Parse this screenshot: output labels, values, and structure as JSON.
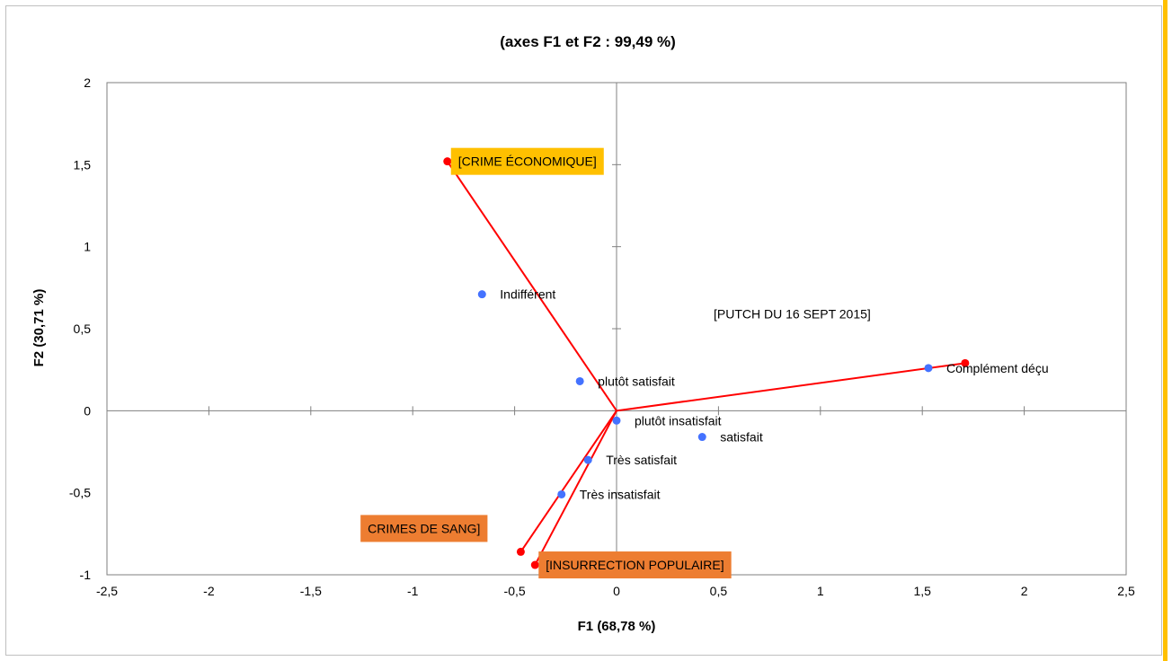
{
  "chart_data": {
    "type": "scatter",
    "title": "(axes F1 et F2 : 99,49 %)",
    "xlabel": "F1 (68,78 %)",
    "ylabel": "F2 (30,71 %)",
    "xlim": [
      -2.5,
      2.5
    ],
    "ylim": [
      -1,
      2
    ],
    "x_ticks": [
      "-2,5",
      "-2",
      "-1,5",
      "-1",
      "-0,5",
      "0",
      "0,5",
      "1",
      "1,5",
      "2",
      "2,5"
    ],
    "y_ticks": [
      "-1",
      "-0,5",
      "0",
      "0,5",
      "1",
      "1,5",
      "2"
    ],
    "grid": false,
    "series": [
      {
        "marker_color": "#4472ff",
        "points": [
          {
            "label": "Indifférent",
            "x": -0.66,
            "y": 0.71
          },
          {
            "label": "plutôt satisfait",
            "x": -0.18,
            "y": 0.18
          },
          {
            "label": "plutôt insatisfait",
            "x": 0.0,
            "y": -0.06
          },
          {
            "label": "satisfait",
            "x": 0.42,
            "y": -0.16
          },
          {
            "label": "Très satisfait",
            "x": -0.14,
            "y": -0.3
          },
          {
            "label": "Très insatisfait",
            "x": -0.27,
            "y": -0.51
          },
          {
            "label": "Complément déçu",
            "x": 1.53,
            "y": 0.26
          }
        ]
      },
      {
        "marker_color": "#ff0000",
        "vectors": [
          {
            "label": "[CRIME ÉCONOMIQUE]",
            "x": -0.83,
            "y": 1.52,
            "box_color": "#ffc000"
          },
          {
            "label": "[PUTCH  DU 16 SEPT 2015]",
            "x": 1.71,
            "y": 0.29,
            "box_color": "none"
          },
          {
            "label": "CRIMES DE SANG]",
            "x": -0.47,
            "y": -0.86,
            "box_color": "#ed7d31"
          },
          {
            "label": "[INSURRECTION POPULAIRE]",
            "x": -0.4,
            "y": -0.94,
            "box_color": "#ed7d31"
          }
        ]
      }
    ]
  }
}
